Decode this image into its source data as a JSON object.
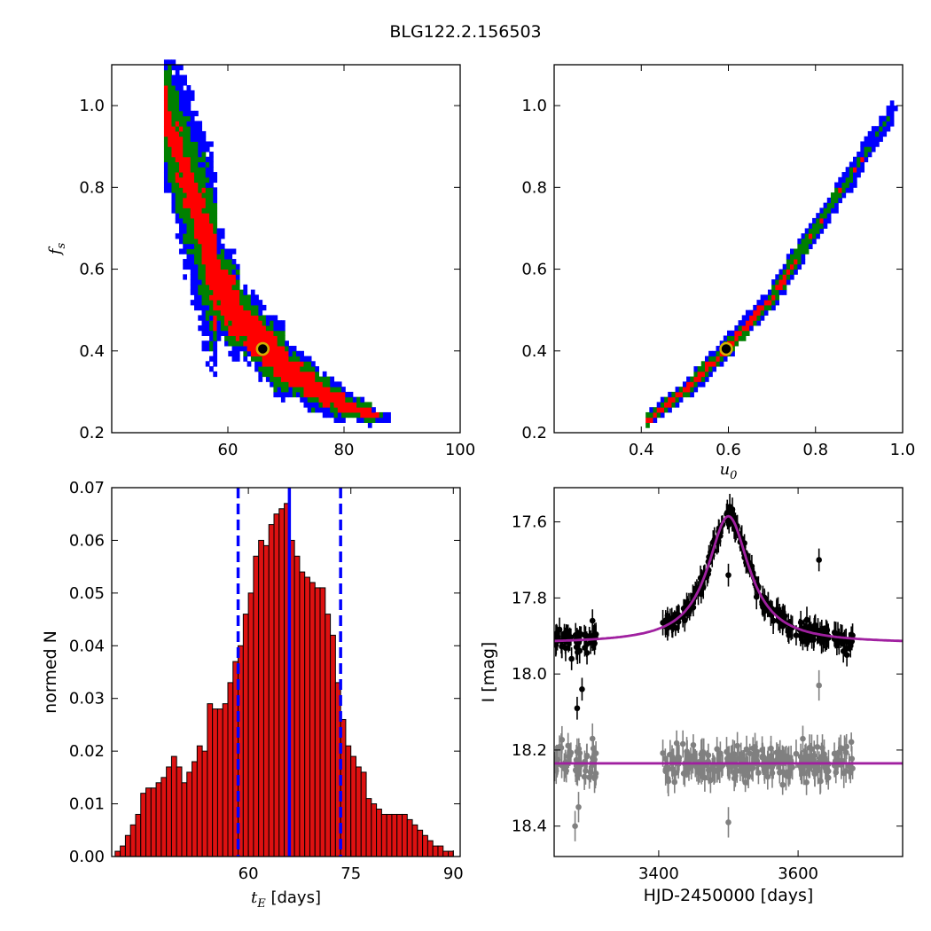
{
  "figure_title": "BLG122.2.156503",
  "colors": {
    "c3": "#0000ff",
    "c2": "#008000",
    "c1": "#ff0000",
    "best": "#000000",
    "marker_edge": "#d4b000",
    "bar": "#dd1111",
    "model": "#a020a0",
    "data_top": "#000000",
    "data_bottom": "#808080",
    "vline": "#0000ff"
  },
  "chart_data": [
    {
      "id": "fs_vs_tE",
      "type": "heatmap",
      "xlabel": "",
      "ylabel": "f_s",
      "xlim": [
        40,
        100
      ],
      "ylim": [
        0.2,
        1.1
      ],
      "xticks": [
        "60",
        "80",
        "100"
      ],
      "yticks": [
        "0.2",
        "0.4",
        "0.6",
        "0.8",
        "1.0"
      ],
      "best_fit": {
        "x": 66,
        "y": 0.405
      },
      "tracks": [
        {
          "x": 49,
          "y": 0.97,
          "w1": 1.2,
          "w2": 2.8,
          "w3": 4.2
        },
        {
          "x": 52,
          "y": 0.84,
          "w1": 1.2,
          "w2": 3.0,
          "w3": 4.8
        },
        {
          "x": 55,
          "y": 0.7,
          "w1": 1.5,
          "w2": 3.3,
          "w3": 5.3
        },
        {
          "x": 58,
          "y": 0.56,
          "w1": 2.8,
          "w2": 4.0,
          "w3": 5.6
        },
        {
          "x": 62,
          "y": 0.47,
          "w1": 3.0,
          "w2": 4.3,
          "w3": 5.8
        },
        {
          "x": 66,
          "y": 0.41,
          "w1": 3.2,
          "w2": 4.6,
          "w3": 6.0
        },
        {
          "x": 70,
          "y": 0.35,
          "w1": 3.2,
          "w2": 4.6,
          "w3": 6.2
        },
        {
          "x": 75,
          "y": 0.3,
          "w1": 3.0,
          "w2": 4.6,
          "w3": 6.2
        },
        {
          "x": 80,
          "y": 0.26,
          "w1": 2.6,
          "w2": 4.4,
          "w3": 6.0
        },
        {
          "x": 85,
          "y": 0.235,
          "w1": 2.0,
          "w2": 4.2,
          "w3": 5.8
        },
        {
          "x": 88,
          "y": 0.23,
          "w1": 0.5,
          "w2": 2.0,
          "w3": 4.2
        }
      ]
    },
    {
      "id": "fs_vs_u0",
      "type": "heatmap",
      "xlabel": "u_0",
      "ylabel": "",
      "xlim": [
        0.2,
        1.0
      ],
      "ylim": [
        0.2,
        1.1
      ],
      "xticks": [
        "0.4",
        "0.6",
        "0.8",
        "1.0"
      ],
      "yticks": [
        "0.2",
        "0.4",
        "0.6",
        "0.8",
        "1.0"
      ],
      "best_fit": {
        "x": 0.595,
        "y": 0.405
      },
      "tracks": [
        {
          "x": 0.41,
          "y": 0.225,
          "w1": 0.008,
          "w2": 0.016,
          "w3": 0.024
        },
        {
          "x": 0.5,
          "y": 0.3,
          "w1": 0.008,
          "w2": 0.016,
          "w3": 0.024
        },
        {
          "x": 0.595,
          "y": 0.405,
          "w1": 0.008,
          "w2": 0.016,
          "w3": 0.024
        },
        {
          "x": 0.7,
          "y": 0.53,
          "w1": 0.006,
          "w2": 0.014,
          "w3": 0.022
        },
        {
          "x": 0.8,
          "y": 0.7,
          "w1": 0.0,
          "w2": 0.012,
          "w3": 0.022
        },
        {
          "x": 0.9,
          "y": 0.86,
          "w1": 0.0,
          "w2": 0.008,
          "w3": 0.02
        },
        {
          "x": 0.98,
          "y": 0.99,
          "w1": 0.0,
          "w2": 0.0,
          "w3": 0.016
        }
      ]
    },
    {
      "id": "tE_histogram",
      "type": "bar",
      "xlabel": "t_E [days]",
      "ylabel": "normed N",
      "xlim": [
        40,
        91
      ],
      "ylim": [
        0,
        0.07
      ],
      "xticks": [
        "60",
        "75",
        "90"
      ],
      "yticks": [
        "0.00",
        "0.01",
        "0.02",
        "0.03",
        "0.04",
        "0.05",
        "0.06",
        "0.07"
      ],
      "bin_start": 40.5,
      "bin_width": 0.75,
      "values": [
        0.001,
        0.002,
        0.004,
        0.006,
        0.008,
        0.012,
        0.013,
        0.013,
        0.014,
        0.015,
        0.017,
        0.019,
        0.017,
        0.014,
        0.016,
        0.018,
        0.021,
        0.02,
        0.029,
        0.028,
        0.028,
        0.029,
        0.033,
        0.037,
        0.04,
        0.046,
        0.05,
        0.057,
        0.06,
        0.059,
        0.063,
        0.065,
        0.066,
        0.067,
        0.06,
        0.057,
        0.054,
        0.053,
        0.052,
        0.051,
        0.051,
        0.046,
        0.042,
        0.033,
        0.026,
        0.021,
        0.019,
        0.017,
        0.016,
        0.011,
        0.01,
        0.009,
        0.008,
        0.008,
        0.008,
        0.008,
        0.008,
        0.007,
        0.006,
        0.005,
        0.004,
        0.003,
        0.002,
        0.002,
        0.001,
        0.001
      ],
      "median": 66,
      "lower": 58.5,
      "upper": 73.5
    },
    {
      "id": "lightcurve",
      "type": "scatter",
      "xlabel": "HJD-2450000 [days]",
      "ylabel": "I [mag]",
      "xlim": [
        3250,
        3750
      ],
      "ylim": [
        18.48,
        17.51
      ],
      "xticks": [
        "3400",
        "3600"
      ],
      "yticks": [
        "17.6",
        "17.8",
        "18.0",
        "18.2",
        "18.4"
      ],
      "model": {
        "t0": 3500,
        "baseline": 17.92,
        "peak": 17.585,
        "tE": 66
      },
      "baseline_residual": 18.235,
      "observing_windows": [
        [
          3250,
          3290
        ],
        [
          3292,
          3310
        ],
        [
          3405,
          3680
        ]
      ],
      "outliers_top": [
        {
          "x": 3275,
          "y": 17.96
        },
        {
          "x": 3283,
          "y": 18.09
        },
        {
          "x": 3290,
          "y": 18.04
        },
        {
          "x": 3305,
          "y": 17.86
        },
        {
          "x": 3500,
          "y": 17.74
        },
        {
          "x": 3630,
          "y": 17.7
        },
        {
          "x": 3665,
          "y": 17.94
        },
        {
          "x": 3670,
          "y": 17.95
        }
      ],
      "outliers_bottom": [
        {
          "x": 3280,
          "y": 18.4
        },
        {
          "x": 3285,
          "y": 18.35
        },
        {
          "x": 3305,
          "y": 18.17
        },
        {
          "x": 3500,
          "y": 18.39
        },
        {
          "x": 3630,
          "y": 18.03
        }
      ]
    }
  ]
}
